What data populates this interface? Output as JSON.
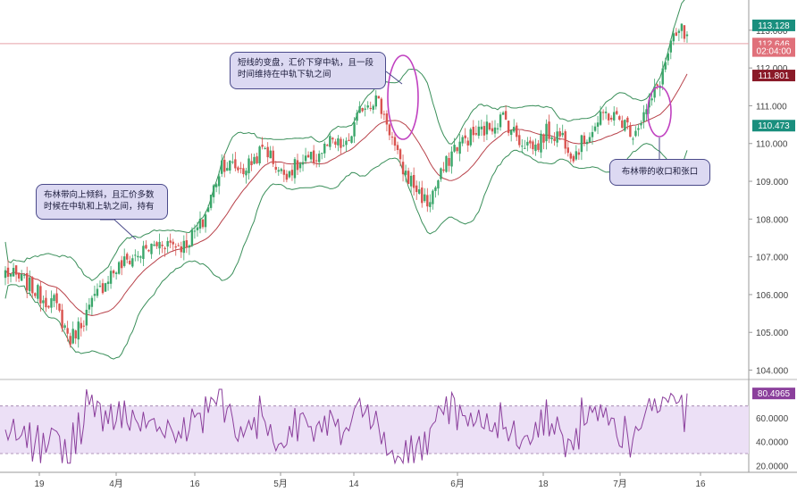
{
  "chart_data": [
    {
      "type": "candlestick",
      "overlay": "bollinger_bands",
      "ylim": [
        103.8,
        113.8
      ],
      "yticks": [
        104,
        105,
        106,
        107,
        108,
        109,
        110,
        111,
        112,
        113
      ],
      "ytick_labels": [
        "104.000",
        "105.000",
        "106.000",
        "107.000",
        "108.000",
        "109.000",
        "110.000",
        "111.000",
        "112.000",
        "113.000"
      ],
      "xticks": [
        "19",
        "4月",
        "16",
        "5月",
        "14",
        "6月",
        "18",
        "7月",
        "16"
      ],
      "price_markers": [
        {
          "value": 113.128,
          "label": "113.128",
          "color": "#1a8f7e"
        },
        {
          "value": 112.646,
          "label": "112.646",
          "color": "#e0707a"
        },
        {
          "value": 112.45,
          "label": "02:04:00",
          "color": "#e0707a"
        },
        {
          "value": 111.801,
          "label": "111.801",
          "color": "#8a1a28"
        },
        {
          "value": 110.473,
          "label": "110.473",
          "color": "#1a8f7e"
        }
      ],
      "close_anchors": [
        [
          0,
          106.6
        ],
        [
          8,
          106.3
        ],
        [
          14,
          105.9
        ],
        [
          18,
          105.8
        ],
        [
          24,
          104.8
        ],
        [
          30,
          105.5
        ],
        [
          38,
          106.5
        ],
        [
          45,
          106.9
        ],
        [
          50,
          107.1
        ],
        [
          58,
          107.4
        ],
        [
          66,
          107.3
        ],
        [
          73,
          107.9
        ],
        [
          80,
          109.5
        ],
        [
          88,
          109.3
        ],
        [
          96,
          109.9
        ],
        [
          102,
          109.2
        ],
        [
          108,
          109.4
        ],
        [
          114,
          109.6
        ],
        [
          120,
          110.0
        ],
        [
          126,
          109.9
        ],
        [
          132,
          111.0
        ],
        [
          137,
          111.2
        ],
        [
          141,
          110.6
        ],
        [
          146,
          109.4
        ],
        [
          152,
          108.8
        ],
        [
          156,
          108.4
        ],
        [
          160,
          109.0
        ],
        [
          166,
          109.9
        ],
        [
          172,
          110.2
        ],
        [
          178,
          110.4
        ],
        [
          184,
          110.7
        ],
        [
          190,
          110.1
        ],
        [
          196,
          109.9
        ],
        [
          200,
          110.3
        ],
        [
          206,
          110.2
        ],
        [
          210,
          109.7
        ],
        [
          216,
          110.3
        ],
        [
          222,
          110.8
        ],
        [
          228,
          110.6
        ],
        [
          232,
          110.3
        ],
        [
          238,
          111.0
        ],
        [
          242,
          111.7
        ],
        [
          246,
          112.6
        ],
        [
          250,
          113.0
        ],
        [
          252,
          112.7
        ]
      ],
      "annotations": [
        "短线的变盘，汇价下穿中轨，且一段时间维持在中轨下轨之间",
        "布林带向上倾斜，且汇价多数时候在中轨和上轨之间，持有",
        "布林带的收口和张口"
      ]
    },
    {
      "type": "line",
      "indicator": "oscillator",
      "ylim": [
        15,
        90
      ],
      "yticks": [
        20,
        40,
        60
      ],
      "ytick_labels": [
        "20.0000",
        "40.0000",
        "60.0000"
      ],
      "band": [
        30,
        70
      ],
      "last_value_label": "80.4965",
      "color": "#8b3f9c"
    }
  ]
}
